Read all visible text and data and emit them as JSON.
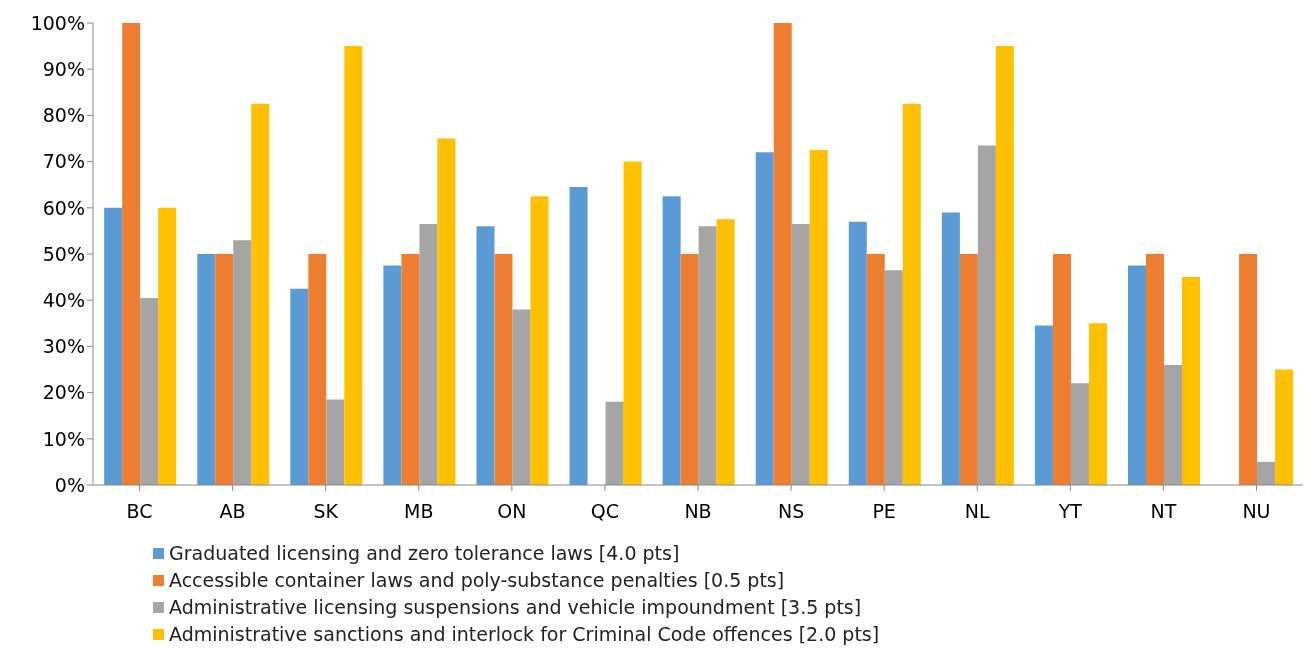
{
  "chart_data": {
    "type": "bar",
    "categories": [
      "BC",
      "AB",
      "SK",
      "MB",
      "ON",
      "QC",
      "NB",
      "NS",
      "PE",
      "NL",
      "YT",
      "NT",
      "NU"
    ],
    "series": [
      {
        "name": "Graduated licensing and zero tolerance laws [4.0 pts]",
        "color": "#5b9bd5",
        "values": [
          60,
          50,
          42.5,
          47.5,
          56,
          64.5,
          62.5,
          72,
          57,
          59,
          34.5,
          47.5,
          0
        ]
      },
      {
        "name": "Accessible container laws and poly-substance penalties [0.5 pts]",
        "color": "#ed7d31",
        "values": [
          100,
          50,
          50,
          50,
          50,
          0,
          50,
          100,
          50,
          50,
          50,
          50,
          50
        ]
      },
      {
        "name": "Administrative licensing suspensions and vehicle impoundment [3.5 pts]",
        "color": "#a5a5a5",
        "values": [
          40.5,
          53,
          18.5,
          56.5,
          38,
          18,
          56,
          56.5,
          46.5,
          73.5,
          22,
          26,
          5
        ]
      },
      {
        "name": "Administrative sanctions and interlock for Criminal Code offences [2.0 pts]",
        "color": "#ffc000",
        "values": [
          60,
          82.5,
          95,
          75,
          62.5,
          70,
          57.5,
          72.5,
          82.5,
          95,
          35,
          45,
          25
        ]
      }
    ],
    "ylim": [
      0,
      100
    ],
    "yticks": [
      {
        "value": 0,
        "label": "0%"
      },
      {
        "value": 10,
        "label": "10%"
      },
      {
        "value": 20,
        "label": "20%"
      },
      {
        "value": 30,
        "label": "30%"
      },
      {
        "value": 40,
        "label": "40%"
      },
      {
        "value": 50,
        "label": "50%"
      },
      {
        "value": 60,
        "label": "60%"
      },
      {
        "value": 70,
        "label": "70%"
      },
      {
        "value": 80,
        "label": "80%"
      },
      {
        "value": 90,
        "label": "90%"
      },
      {
        "value": 100,
        "label": "100%"
      }
    ],
    "grid": false,
    "legend": "bottom"
  }
}
